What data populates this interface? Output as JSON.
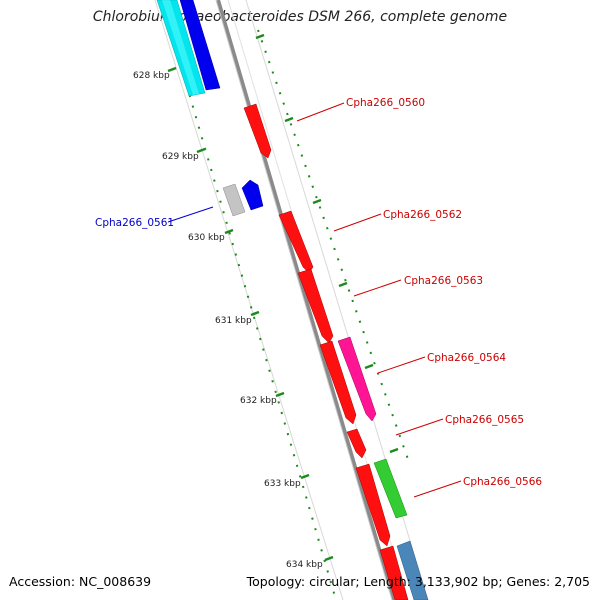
{
  "title": "Chlorobium phaeobacteroides DSM 266, complete genome",
  "footer": {
    "accession": "Accession: NC_008639",
    "summary": "Topology: circular; Length: 3,133,902 bp; Genes: 2,705"
  },
  "chart_data": {
    "type": "genome-map",
    "kbp_ticks": [
      "628 kbp",
      "629 kbp",
      "630 kbp",
      "631 kbp",
      "632 kbp",
      "633 kbp",
      "634 kbp"
    ],
    "gene_labels": [
      {
        "id": "Cpha266_0560",
        "color": "#cc0000"
      },
      {
        "id": "Cpha266_0561",
        "color": "#0000cc"
      },
      {
        "id": "Cpha266_0562",
        "color": "#cc0000"
      },
      {
        "id": "Cpha266_0563",
        "color": "#cc0000"
      },
      {
        "id": "Cpha266_0564",
        "color": "#cc0000"
      },
      {
        "id": "Cpha266_0565",
        "color": "#cc0000"
      },
      {
        "id": "Cpha266_0566",
        "color": "#cc0000"
      }
    ],
    "colors": {
      "cds_forward": "#ff0000",
      "cds_reverse": "#0000ff",
      "trna": "#ff1493",
      "rrna": "#00ffff",
      "other": "#32cd32",
      "misc": "#4682b4",
      "pseudo": "#c0c0c0",
      "backbone": "#888888",
      "ticks": "#006400"
    }
  }
}
